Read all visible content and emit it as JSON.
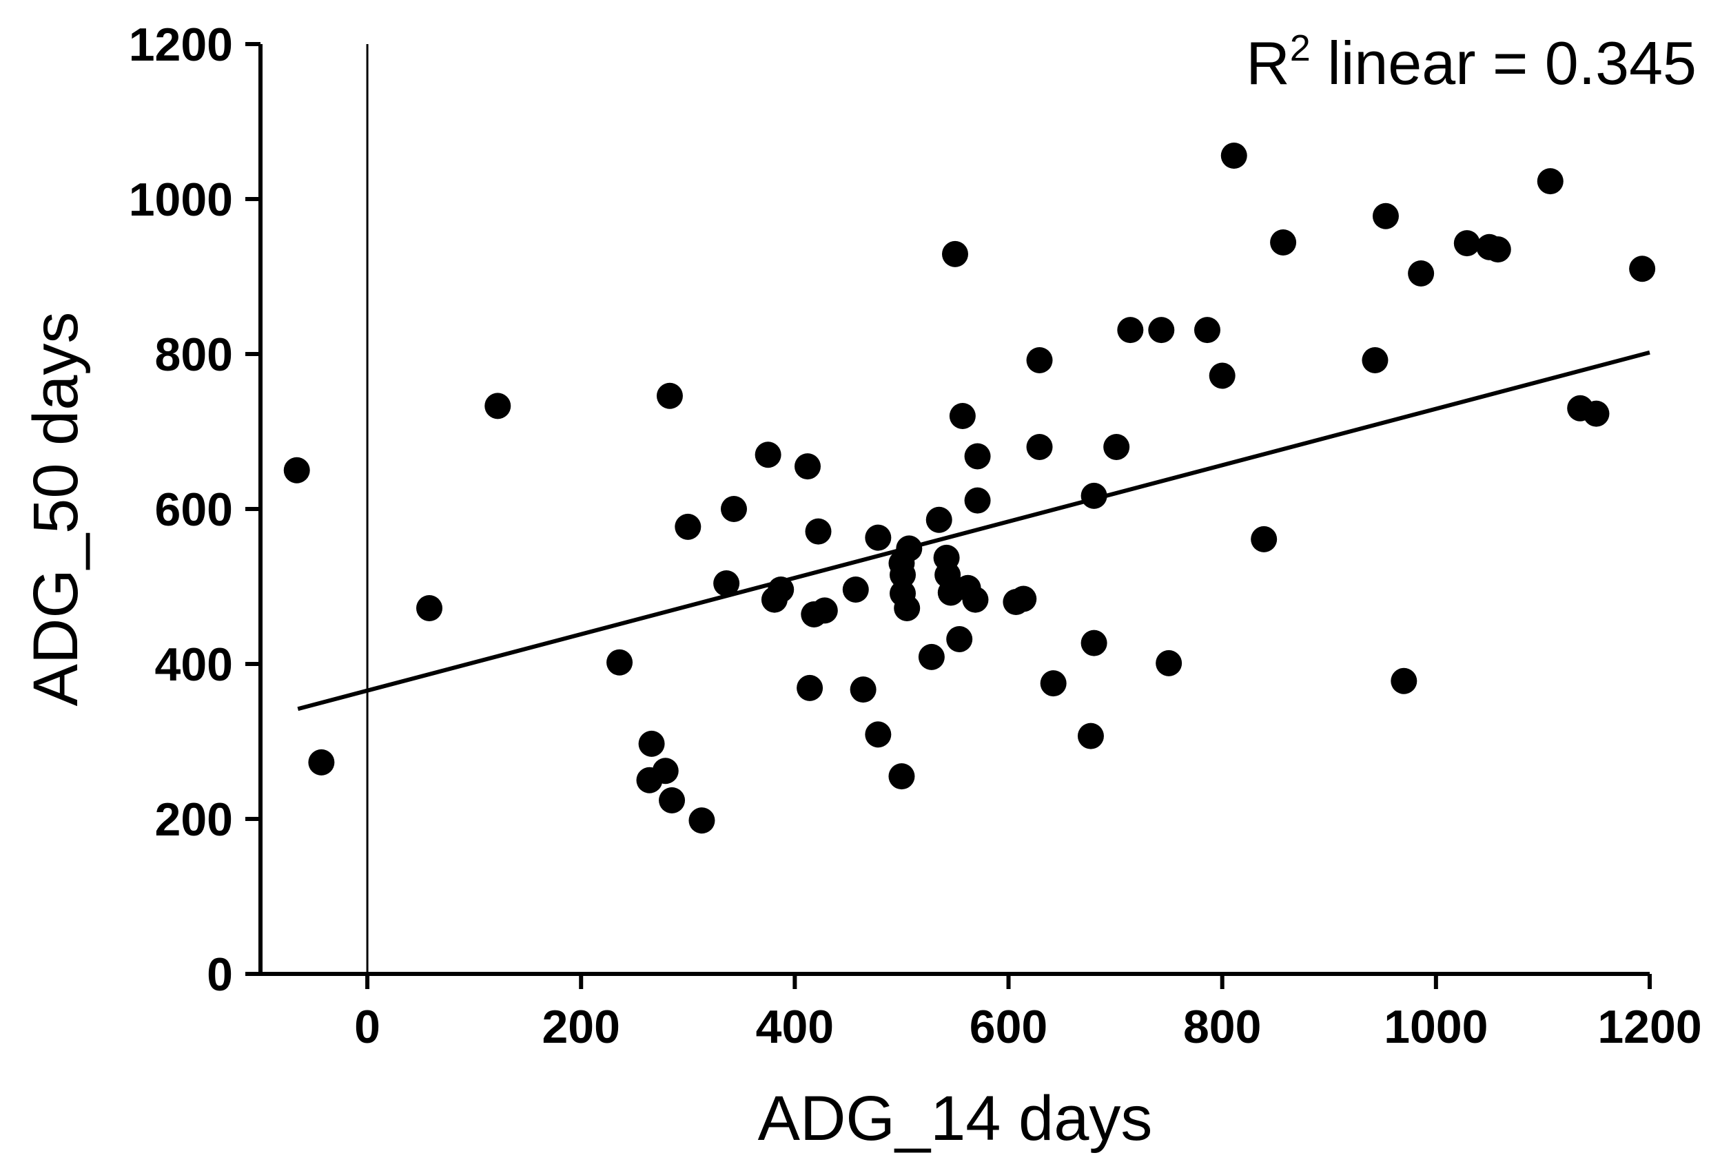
{
  "chart_data": {
    "type": "scatter",
    "title": "",
    "xlabel": "ADG_14 days",
    "ylabel": "ADG_50 days",
    "xlim": [
      -100,
      1200
    ],
    "ylim": [
      0,
      1200
    ],
    "xticks": [
      0,
      200,
      400,
      600,
      800,
      1000,
      1200
    ],
    "yticks": [
      0,
      200,
      400,
      600,
      800,
      1000,
      1200
    ],
    "vline_x": 0,
    "annotation": {
      "prefix": "R",
      "sup": "2",
      "text": " linear = 0.345"
    },
    "fit_line": {
      "x": [
        -65,
        1200
      ],
      "y": [
        342,
        802
      ]
    },
    "points": [
      {
        "x": -66,
        "y": 650
      },
      {
        "x": -43,
        "y": 273
      },
      {
        "x": 58,
        "y": 472
      },
      {
        "x": 122,
        "y": 733
      },
      {
        "x": 236,
        "y": 402
      },
      {
        "x": 266,
        "y": 297
      },
      {
        "x": 264,
        "y": 250
      },
      {
        "x": 279,
        "y": 262
      },
      {
        "x": 285,
        "y": 224
      },
      {
        "x": 283,
        "y": 746
      },
      {
        "x": 300,
        "y": 577
      },
      {
        "x": 313,
        "y": 198
      },
      {
        "x": 336,
        "y": 504
      },
      {
        "x": 343,
        "y": 600
      },
      {
        "x": 375,
        "y": 670
      },
      {
        "x": 381,
        "y": 483
      },
      {
        "x": 387,
        "y": 496
      },
      {
        "x": 412,
        "y": 655
      },
      {
        "x": 414,
        "y": 369
      },
      {
        "x": 418,
        "y": 464
      },
      {
        "x": 422,
        "y": 571
      },
      {
        "x": 428,
        "y": 469
      },
      {
        "x": 457,
        "y": 496
      },
      {
        "x": 464,
        "y": 367
      },
      {
        "x": 478,
        "y": 309
      },
      {
        "x": 478,
        "y": 563
      },
      {
        "x": 500,
        "y": 255
      },
      {
        "x": 500,
        "y": 530
      },
      {
        "x": 501,
        "y": 515
      },
      {
        "x": 501,
        "y": 491
      },
      {
        "x": 505,
        "y": 472
      },
      {
        "x": 507,
        "y": 549
      },
      {
        "x": 528,
        "y": 409
      },
      {
        "x": 535,
        "y": 586
      },
      {
        "x": 542,
        "y": 537
      },
      {
        "x": 543,
        "y": 515
      },
      {
        "x": 546,
        "y": 492
      },
      {
        "x": 550,
        "y": 929
      },
      {
        "x": 554,
        "y": 432
      },
      {
        "x": 557,
        "y": 720
      },
      {
        "x": 562,
        "y": 498
      },
      {
        "x": 569,
        "y": 483
      },
      {
        "x": 571,
        "y": 668
      },
      {
        "x": 571,
        "y": 611
      },
      {
        "x": 607,
        "y": 480
      },
      {
        "x": 614,
        "y": 484
      },
      {
        "x": 629,
        "y": 792
      },
      {
        "x": 629,
        "y": 680
      },
      {
        "x": 642,
        "y": 375
      },
      {
        "x": 677,
        "y": 307
      },
      {
        "x": 680,
        "y": 427
      },
      {
        "x": 680,
        "y": 617
      },
      {
        "x": 701,
        "y": 680
      },
      {
        "x": 714,
        "y": 831
      },
      {
        "x": 743,
        "y": 831
      },
      {
        "x": 750,
        "y": 401
      },
      {
        "x": 786,
        "y": 831
      },
      {
        "x": 800,
        "y": 772
      },
      {
        "x": 811,
        "y": 1056
      },
      {
        "x": 839,
        "y": 561
      },
      {
        "x": 857,
        "y": 944
      },
      {
        "x": 943,
        "y": 792
      },
      {
        "x": 953,
        "y": 978
      },
      {
        "x": 970,
        "y": 378
      },
      {
        "x": 986,
        "y": 904
      },
      {
        "x": 1029,
        "y": 943
      },
      {
        "x": 1050,
        "y": 938
      },
      {
        "x": 1058,
        "y": 935
      },
      {
        "x": 1107,
        "y": 1023
      },
      {
        "x": 1135,
        "y": 730
      },
      {
        "x": 1150,
        "y": 723
      },
      {
        "x": 1193,
        "y": 910
      }
    ]
  }
}
